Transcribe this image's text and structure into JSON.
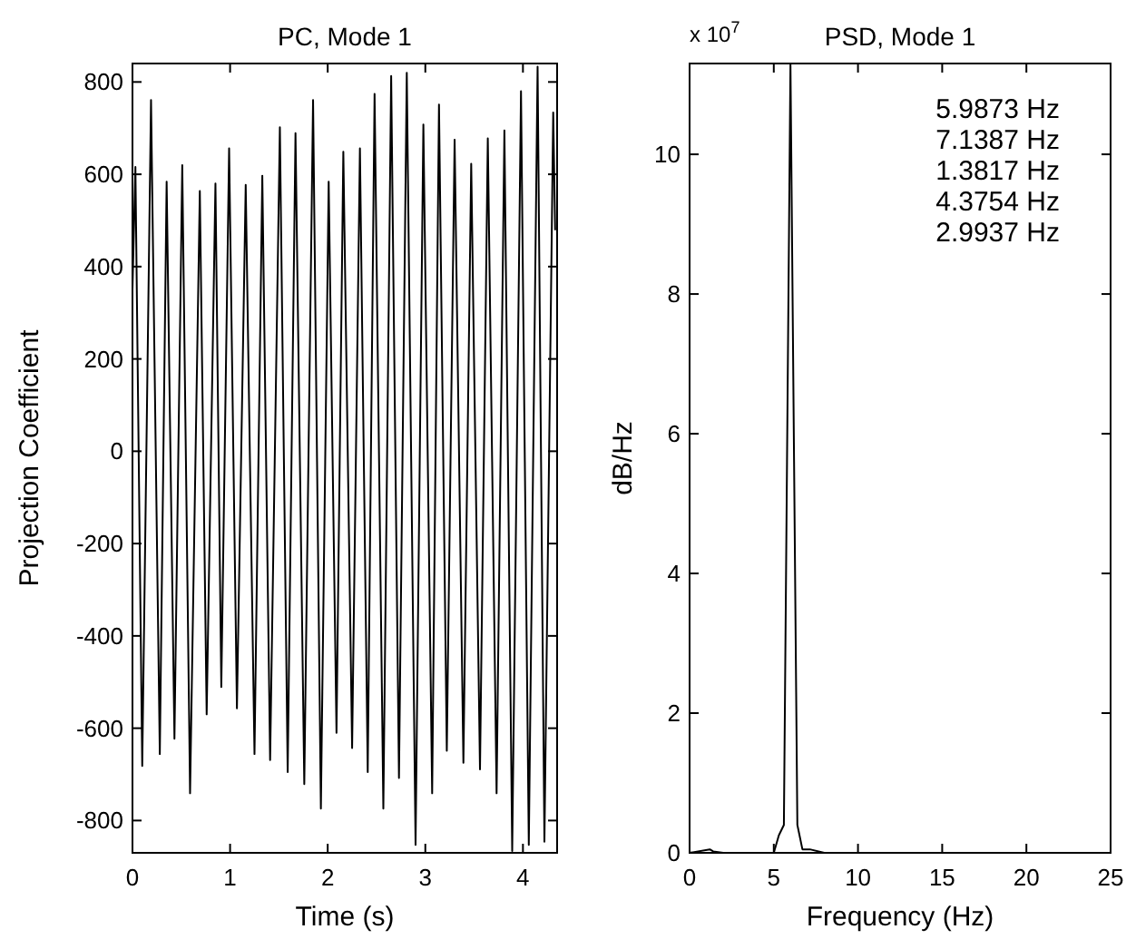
{
  "chart_data": [
    {
      "type": "line",
      "title": "PC, Mode 1",
      "xlabel": "Time (s)",
      "ylabel": "Projection Coefficient",
      "xlim": [
        0,
        4.35
      ],
      "ylim": [
        -870,
        840
      ],
      "xticks": [
        0,
        1,
        2,
        3,
        4
      ],
      "yticks": [
        -800,
        -600,
        -400,
        -200,
        0,
        200,
        400,
        600,
        800
      ],
      "x": [
        0,
        0.03,
        0.1,
        0.19,
        0.28,
        0.35,
        0.43,
        0.51,
        0.59,
        0.69,
        0.76,
        0.85,
        0.91,
        0.99,
        1.07,
        1.16,
        1.25,
        1.33,
        1.41,
        1.51,
        1.59,
        1.67,
        1.76,
        1.85,
        1.93,
        2.01,
        2.09,
        2.16,
        2.25,
        2.33,
        2.41,
        2.48,
        2.57,
        2.65,
        2.73,
        2.81,
        2.9,
        2.98,
        3.07,
        3.14,
        3.22,
        3.3,
        3.39,
        3.47,
        3.56,
        3.64,
        3.73,
        3.81,
        3.89,
        3.98,
        4.06,
        4.15,
        4.22,
        4.31,
        4.33
      ],
      "series": [
        {
          "color": "#000000",
          "values": [
            350,
            616,
            -682,
            761,
            -656,
            584,
            -623,
            620,
            -741,
            564,
            -570,
            580,
            -511,
            656,
            -557,
            577,
            -656,
            597,
            -669,
            702,
            -695,
            689,
            -721,
            761,
            -774,
            584,
            -610,
            649,
            -643,
            656,
            -695,
            774,
            -774,
            813,
            -708,
            820,
            -853,
            708,
            -741,
            751,
            -649,
            675,
            -675,
            623,
            -689,
            678,
            -741,
            695,
            -866,
            780,
            -853,
            833,
            -846,
            734,
            479
          ]
        }
      ]
    },
    {
      "type": "line",
      "title": "PSD, Mode 1",
      "xlabel": "Frequency (Hz)",
      "ylabel": "dB/Hz",
      "xlim": [
        0,
        25
      ],
      "ylim": [
        0,
        11.3
      ],
      "xticks": [
        0,
        5,
        10,
        15,
        20,
        25
      ],
      "yticks": [
        0,
        2,
        4,
        6,
        8,
        10
      ],
      "annotations": [
        "x 10$^{7}$",
        "5.9873 Hz",
        "7.1387 Hz",
        "1.3817 Hz",
        "4.3754 Hz",
        "2.9937 Hz"
      ],
      "x": [
        0,
        1.2,
        1.4,
        2,
        5,
        5.3,
        5.6,
        5.99,
        6.4,
        6.7,
        7.14,
        8,
        25
      ],
      "series": [
        {
          "color": "#000000",
          "values": [
            0,
            0.05,
            0.02,
            0,
            0,
            0.25,
            0.4,
            11.3,
            0.4,
            0.05,
            0.05,
            0,
            0
          ]
        }
      ]
    }
  ]
}
